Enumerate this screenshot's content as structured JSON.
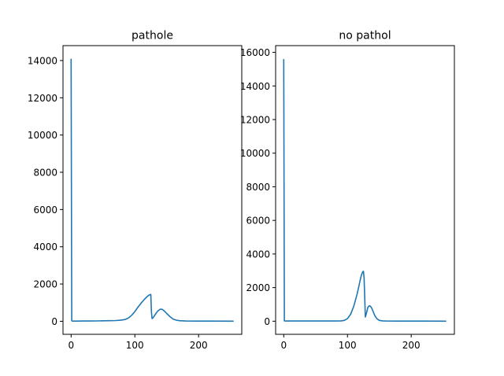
{
  "chart_data": [
    {
      "type": "line",
      "title": "pathole",
      "xlabel": "",
      "ylabel": "",
      "xlim": [
        -12.75,
        267.75
      ],
      "ylim": [
        -700,
        14800
      ],
      "xticks": [
        0,
        100,
        200
      ],
      "yticks": [
        0,
        2000,
        4000,
        6000,
        8000,
        10000,
        12000,
        14000
      ],
      "grid": false,
      "series": [
        {
          "color": "#1f77b4",
          "x": [
            0,
            1,
            2,
            10,
            20,
            30,
            40,
            50,
            60,
            70,
            75,
            80,
            85,
            90,
            95,
            100,
            105,
            110,
            115,
            120,
            123,
            125,
            126,
            127,
            128,
            130,
            133,
            136,
            140,
            143,
            146,
            150,
            155,
            160,
            165,
            170,
            180,
            200,
            220,
            255
          ],
          "y": [
            14100,
            30,
            10,
            10,
            12,
            15,
            20,
            25,
            30,
            40,
            50,
            70,
            100,
            180,
            320,
            520,
            760,
            980,
            1180,
            1350,
            1420,
            1440,
            500,
            150,
            160,
            260,
            420,
            550,
            650,
            640,
            560,
            420,
            250,
            120,
            60,
            30,
            15,
            10,
            8,
            5
          ]
        }
      ]
    },
    {
      "type": "line",
      "title": "no pathol",
      "xlabel": "",
      "ylabel": "",
      "xlim": [
        -12.75,
        267.75
      ],
      "ylim": [
        -780,
        16400
      ],
      "xticks": [
        0,
        100,
        200
      ],
      "yticks": [
        0,
        2000,
        4000,
        6000,
        8000,
        10000,
        12000,
        14000,
        16000
      ],
      "grid": false,
      "series": [
        {
          "color": "#1f77b4",
          "x": [
            0,
            1,
            2,
            20,
            40,
            60,
            80,
            90,
            95,
            100,
            105,
            110,
            115,
            118,
            120,
            122,
            124,
            125,
            126,
            127,
            128,
            130,
            132,
            134,
            136,
            138,
            140,
            143,
            146,
            150,
            155,
            160,
            180,
            200,
            220,
            255
          ],
          "y": [
            15600,
            20,
            10,
            10,
            10,
            10,
            10,
            20,
            50,
            150,
            420,
            900,
            1600,
            2100,
            2450,
            2750,
            2950,
            2970,
            2600,
            1500,
            250,
            500,
            820,
            920,
            890,
            780,
            600,
            330,
            150,
            50,
            20,
            10,
            8,
            6,
            5,
            4
          ]
        }
      ]
    }
  ]
}
